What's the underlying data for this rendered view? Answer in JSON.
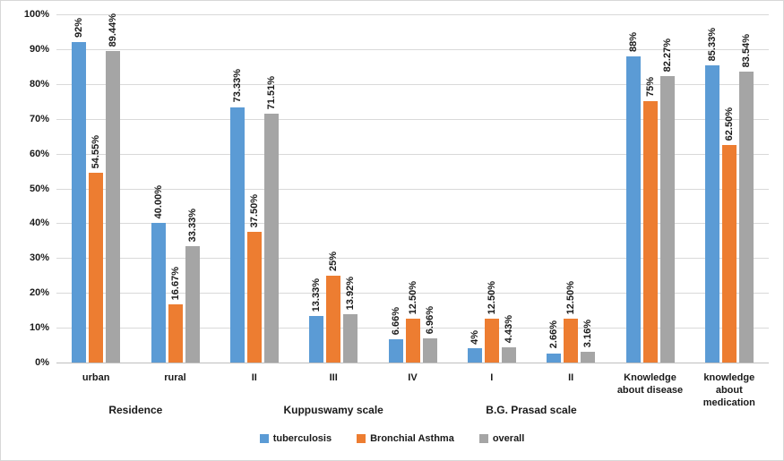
{
  "chart_data": {
    "type": "bar",
    "title": "",
    "xlabel": "",
    "ylabel": "",
    "grid": true,
    "legend_position": "bottom",
    "categories": [
      "urban",
      "rural",
      "II",
      "III",
      "IV",
      "I",
      "II",
      "Knowledge about disease",
      "knowledge about medication"
    ],
    "category_groups": [
      {
        "label": "Residence",
        "start": 0,
        "end": 1
      },
      {
        "label": "Kuppuswamy scale",
        "start": 2,
        "end": 4
      },
      {
        "label": "B.G. Prasad scale",
        "start": 5,
        "end": 6
      }
    ],
    "y_axis": {
      "min": 0,
      "max": 100,
      "step": 10,
      "tick_labels": [
        "0%",
        "10%",
        "20%",
        "30%",
        "40%",
        "50%",
        "60%",
        "70%",
        "80%",
        "90%",
        "100%"
      ]
    },
    "series": [
      {
        "name": "tuberculosis",
        "color": "#5B9BD5",
        "values": [
          92,
          40.0,
          73.33,
          13.33,
          6.66,
          4,
          2.66,
          88,
          85.33
        ],
        "labels": [
          "92%",
          "40.00%",
          "73.33%",
          "13.33%",
          "6.66%",
          "4%",
          "2.66%",
          "88%",
          "85.33%"
        ]
      },
      {
        "name": "Bronchial Asthma",
        "color": "#ED7D31",
        "values": [
          54.55,
          16.67,
          37.5,
          25,
          12.5,
          12.5,
          12.5,
          75,
          62.5
        ],
        "labels": [
          "54.55%",
          "16.67%",
          "37.50%",
          "25%",
          "12.50%",
          "12.50%",
          "12.50%",
          "75%",
          "62.50%"
        ]
      },
      {
        "name": "overall",
        "color": "#A5A5A5",
        "values": [
          89.44,
          33.33,
          71.51,
          13.92,
          6.96,
          4.43,
          3.16,
          82.27,
          83.54
        ],
        "labels": [
          "89.44%",
          "33.33%",
          "71.51%",
          "13.92%",
          "6.96%",
          "4.43%",
          "3.16%",
          "82.27%",
          "83.54%"
        ]
      }
    ],
    "legend": [
      "tuberculosis",
      "Bronchial Asthma",
      "overall"
    ]
  }
}
